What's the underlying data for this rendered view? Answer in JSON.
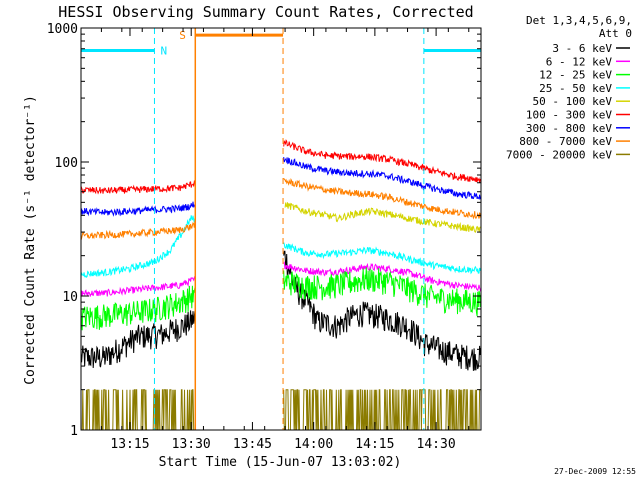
{
  "chart_data": {
    "type": "line",
    "title": "HESSI Observing Summary Count Rates, Corrected",
    "xlabel": "Start Time (15-Jun-07 13:03:02)",
    "ylabel": "Corrected Count Rate (s⁻¹ detector⁻¹)",
    "yscale": "log",
    "ylim": [
      1,
      1000
    ],
    "xlim_minutes": [
      0,
      98
    ],
    "x_unit": "minutes after 13:03:02",
    "yticks": [
      {
        "value": 1,
        "label": "1"
      },
      {
        "value": 10,
        "label": "10"
      },
      {
        "value": 100,
        "label": "100"
      },
      {
        "value": 1000,
        "label": "1000"
      }
    ],
    "xticks": [
      {
        "value": 12,
        "label": "13:15"
      },
      {
        "value": 27,
        "label": "13:30"
      },
      {
        "value": 42,
        "label": "13:45"
      },
      {
        "value": 57,
        "label": "14:00"
      },
      {
        "value": 72,
        "label": "14:15"
      },
      {
        "value": 87,
        "label": "14:30"
      }
    ],
    "legend_header": [
      "Det 1,3,4,5,6,9,",
      "Att 0"
    ],
    "series": [
      {
        "name": "3 - 6 keV",
        "color": "#000000",
        "values": [
          [
            0,
            3.5
          ],
          [
            6,
            3.5
          ],
          [
            10,
            4.2
          ],
          [
            14,
            5
          ],
          [
            20,
            5.2
          ],
          [
            26,
            6.2
          ],
          [
            27,
            6.5
          ],
          [
            50,
            20
          ],
          [
            52,
            12
          ],
          [
            58,
            6.5
          ],
          [
            63,
            6
          ],
          [
            66,
            7
          ],
          [
            69,
            7.5
          ],
          [
            74,
            7
          ],
          [
            80,
            6
          ],
          [
            84,
            4.5
          ],
          [
            88,
            4
          ],
          [
            93,
            3.6
          ],
          [
            98,
            3.5
          ]
        ]
      },
      {
        "name": "6 - 12 keV",
        "color": "#ff00ff",
        "values": [
          [
            0,
            10.5
          ],
          [
            6,
            10.5
          ],
          [
            12,
            11
          ],
          [
            18,
            11.5
          ],
          [
            24,
            12
          ],
          [
            27,
            13
          ],
          [
            50,
            17
          ],
          [
            55,
            15.5
          ],
          [
            60,
            15
          ],
          [
            65,
            15.5
          ],
          [
            70,
            16.5
          ],
          [
            75,
            16
          ],
          [
            80,
            15
          ],
          [
            86,
            13
          ],
          [
            92,
            12
          ],
          [
            98,
            11.5
          ]
        ]
      },
      {
        "name": "12 - 25 keV",
        "color": "#00ff00",
        "values": [
          [
            0,
            7
          ],
          [
            6,
            7.2
          ],
          [
            12,
            7.5
          ],
          [
            18,
            8
          ],
          [
            24,
            9
          ],
          [
            27,
            10
          ],
          [
            50,
            13
          ],
          [
            55,
            12
          ],
          [
            60,
            11.8
          ],
          [
            65,
            12.5
          ],
          [
            70,
            13.5
          ],
          [
            75,
            13
          ],
          [
            80,
            11.5
          ],
          [
            85,
            10
          ],
          [
            90,
            9.5
          ],
          [
            98,
            9
          ]
        ]
      },
      {
        "name": "25 - 50 keV",
        "color": "#00ffff",
        "values": [
          [
            0,
            14.5
          ],
          [
            6,
            15
          ],
          [
            12,
            16
          ],
          [
            18,
            18
          ],
          [
            22,
            22
          ],
          [
            25,
            30
          ],
          [
            27,
            38
          ],
          [
            50,
            24
          ],
          [
            55,
            21
          ],
          [
            60,
            20.5
          ],
          [
            65,
            21
          ],
          [
            70,
            22
          ],
          [
            75,
            21
          ],
          [
            80,
            19
          ],
          [
            86,
            17
          ],
          [
            92,
            16
          ],
          [
            98,
            15.5
          ]
        ]
      },
      {
        "name": "50 - 100 keV",
        "color": "#d4d400",
        "values": [
          [
            50,
            48
          ],
          [
            55,
            43
          ],
          [
            60,
            40
          ],
          [
            63,
            38
          ],
          [
            67,
            41
          ],
          [
            71,
            43
          ],
          [
            75,
            41
          ],
          [
            80,
            38
          ],
          [
            86,
            35
          ],
          [
            92,
            33
          ],
          [
            98,
            31
          ]
        ]
      },
      {
        "name": "100 - 300 keV",
        "color": "#ff0000",
        "values": [
          [
            0,
            62
          ],
          [
            6,
            61
          ],
          [
            12,
            62
          ],
          [
            18,
            63
          ],
          [
            24,
            64
          ],
          [
            27,
            68
          ],
          [
            50,
            138
          ],
          [
            55,
            120
          ],
          [
            60,
            112
          ],
          [
            65,
            110
          ],
          [
            70,
            110
          ],
          [
            75,
            105
          ],
          [
            80,
            97
          ],
          [
            86,
            86
          ],
          [
            92,
            78
          ],
          [
            98,
            74
          ]
        ]
      },
      {
        "name": "300 - 800 keV",
        "color": "#0000ff",
        "values": [
          [
            0,
            43
          ],
          [
            6,
            42
          ],
          [
            12,
            43
          ],
          [
            18,
            44
          ],
          [
            24,
            45
          ],
          [
            27,
            47
          ],
          [
            50,
            105
          ],
          [
            55,
            92
          ],
          [
            60,
            86
          ],
          [
            65,
            83
          ],
          [
            70,
            82
          ],
          [
            75,
            79
          ],
          [
            80,
            72
          ],
          [
            86,
            64
          ],
          [
            92,
            58
          ],
          [
            98,
            55
          ]
        ]
      },
      {
        "name": "800 - 7000 keV",
        "color": "#ff8000",
        "values": [
          [
            0,
            28
          ],
          [
            6,
            28.5
          ],
          [
            12,
            29
          ],
          [
            18,
            30
          ],
          [
            24,
            31
          ],
          [
            27,
            33
          ],
          [
            50,
            72
          ],
          [
            55,
            66
          ],
          [
            60,
            62
          ],
          [
            65,
            59
          ],
          [
            70,
            58
          ],
          [
            75,
            55
          ],
          [
            80,
            50
          ],
          [
            86,
            45
          ],
          [
            92,
            42
          ],
          [
            98,
            40
          ]
        ]
      },
      {
        "name": "7000 - 20000 keV",
        "color": "#8b7b00",
        "values": [
          [
            0,
            1.0
          ],
          [
            27,
            1.0
          ],
          [
            50,
            1.0
          ],
          [
            98,
            1.0
          ]
        ]
      }
    ],
    "annotations": {
      "night_label": "N",
      "saa_label": "S",
      "night_color": "#00e5ff",
      "saa_color": "#ff8000",
      "night_intervals_minutes": [
        [
          0,
          18
        ],
        [
          84,
          98
        ]
      ],
      "saa_interval_minutes": [
        28,
        49.5
      ],
      "bar_level": 680
    }
  },
  "footer": {
    "timestamp": "27-Dec-2009 12:55"
  }
}
